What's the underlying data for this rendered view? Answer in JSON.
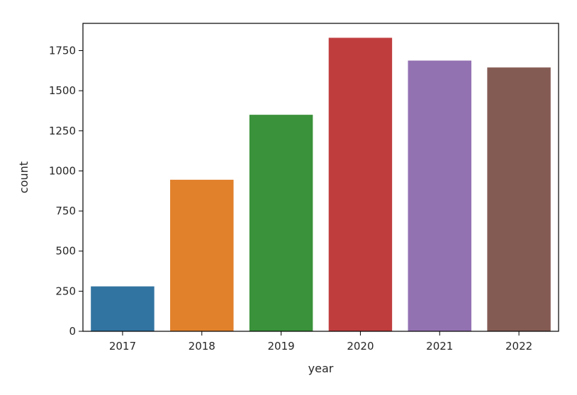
{
  "chart_data": {
    "type": "bar",
    "title": "",
    "xlabel": "year",
    "ylabel": "count",
    "categories": [
      "2017",
      "2018",
      "2019",
      "2020",
      "2021",
      "2022"
    ],
    "values": [
      280,
      945,
      1350,
      1830,
      1688,
      1645
    ],
    "colors": [
      "#3274a1",
      "#e1812c",
      "#3a923a",
      "#c03d3e",
      "#9372b2",
      "#845b53"
    ],
    "ylim": [
      0,
      1920
    ],
    "yticks": [
      0,
      250,
      500,
      750,
      1000,
      1250,
      1500,
      1750
    ],
    "grid": false,
    "legend": "none"
  }
}
